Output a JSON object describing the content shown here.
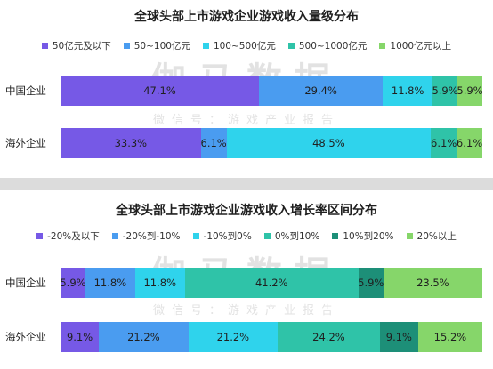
{
  "watermark": {
    "main": "伽马数据",
    "sub": "微信号：游戏产业报告"
  },
  "chart_data": [
    {
      "type": "bar",
      "orientation": "horizontal",
      "stacked": true,
      "title": "全球头部上市游戏企业游戏收入量级分布",
      "categories": [
        "中国企业",
        "海外企业"
      ],
      "legend_position": "top",
      "series": [
        {
          "name": "50亿元及以下",
          "color": "#7659e6",
          "values": [
            47.1,
            33.3
          ]
        },
        {
          "name": "50~100亿元",
          "color": "#4a9cf0",
          "values": [
            29.4,
            6.1
          ]
        },
        {
          "name": "100~500亿元",
          "color": "#2fd3ec",
          "values": [
            11.8,
            48.5
          ]
        },
        {
          "name": "500~1000亿元",
          "color": "#2fc3a8",
          "values": [
            5.9,
            6.1
          ]
        },
        {
          "name": "1000亿元以上",
          "color": "#86d66a",
          "values": [
            5.9,
            6.1
          ]
        }
      ],
      "labels": [
        [
          "47.1%",
          "29.4%",
          "11.8%",
          "5.9%",
          "5.9%"
        ],
        [
          "33.3%",
          "6.1%",
          "48.5%",
          "6.1%",
          "6.1%"
        ]
      ]
    },
    {
      "type": "bar",
      "orientation": "horizontal",
      "stacked": true,
      "title": "全球头部上市游戏企业游戏收入增长率区间分布",
      "categories": [
        "中国企业",
        "海外企业"
      ],
      "legend_position": "top",
      "series": [
        {
          "name": "-20%及以下",
          "color": "#7659e6",
          "values": [
            5.9,
            9.1
          ]
        },
        {
          "name": "-20%到-10%",
          "color": "#4a9cf0",
          "values": [
            11.8,
            21.2
          ]
        },
        {
          "name": "-10%到0%",
          "color": "#2fd3ec",
          "values": [
            11.8,
            21.2
          ]
        },
        {
          "name": "0%到10%",
          "color": "#2fc3a8",
          "values": [
            41.2,
            24.2
          ]
        },
        {
          "name": "10%到20%",
          "color": "#1d8f78",
          "values": [
            5.9,
            9.1
          ]
        },
        {
          "name": "20%以上",
          "color": "#86d66a",
          "values": [
            23.5,
            15.2
          ]
        }
      ],
      "labels": [
        [
          "5.9%",
          "11.8%",
          "11.8%",
          "41.2%",
          "5.9%",
          "23.5%"
        ],
        [
          "9.1%",
          "21.2%",
          "21.2%",
          "24.2%",
          "9.1%",
          "15.2%"
        ]
      ]
    }
  ]
}
